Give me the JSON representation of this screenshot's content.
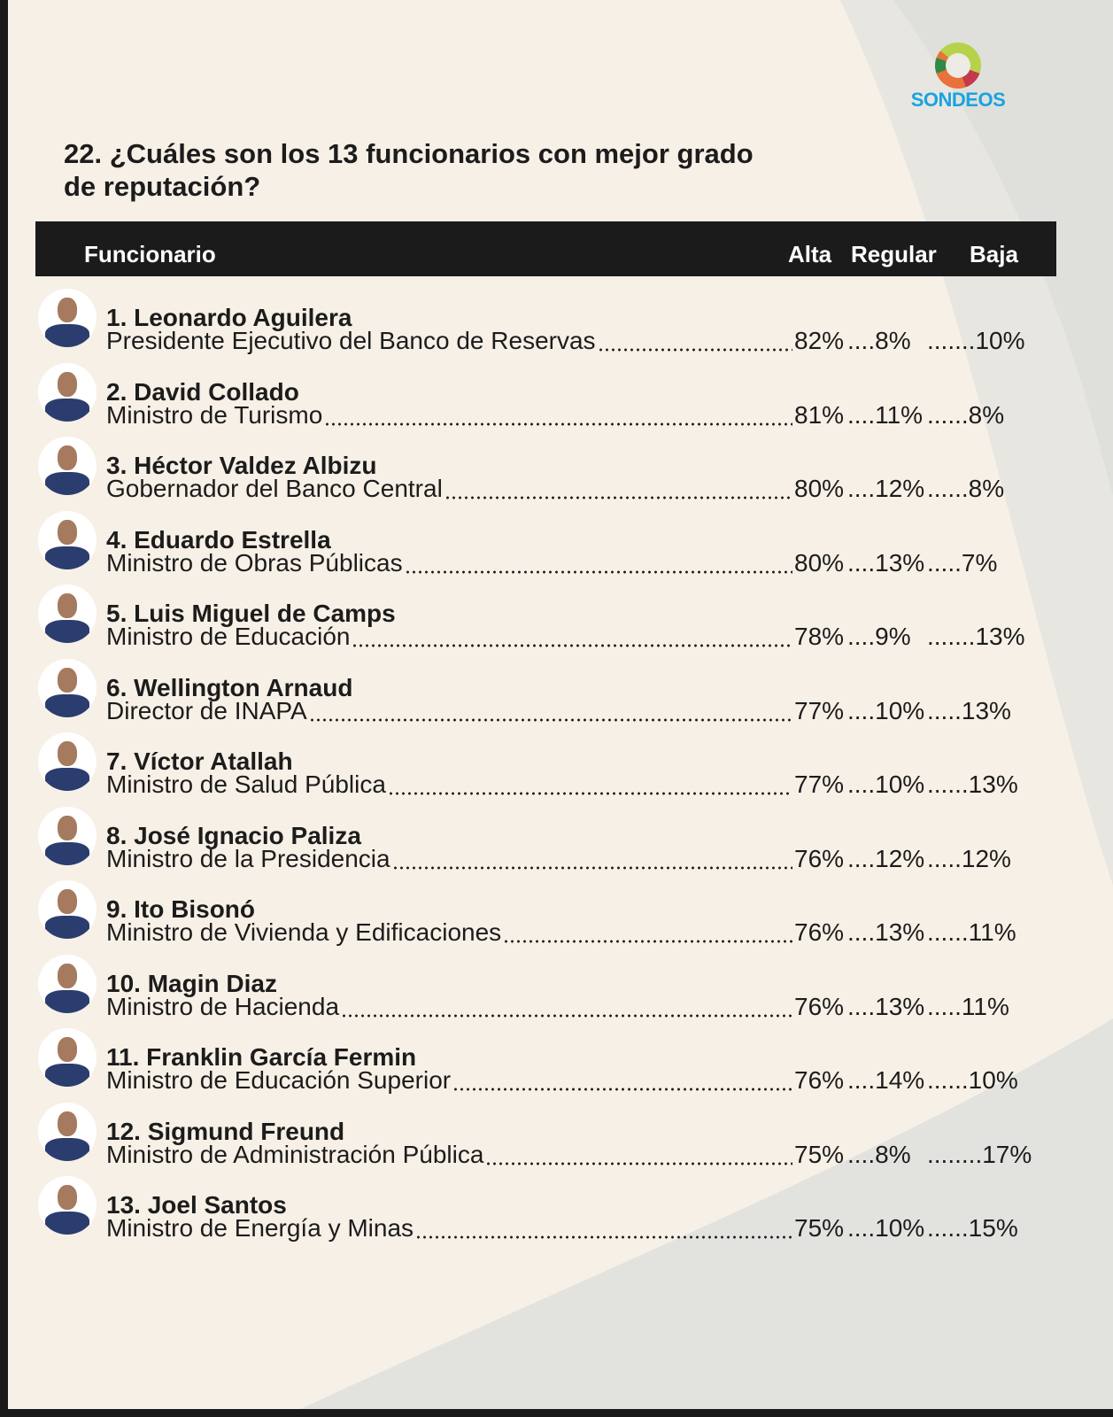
{
  "logo": {
    "text": "SONDEOS",
    "colors": [
      "#b6d24a",
      "#c23a4b",
      "#e9713a",
      "#2f8a45",
      "#1aa3e0"
    ]
  },
  "title": "22.  ¿Cuáles son los 13 funcionarios con mejor grado de reputación?",
  "table": {
    "headers": {
      "name": "Funcionario",
      "alta": "Alta",
      "regular": "Regular",
      "baja": "Baja"
    },
    "rows": [
      {
        "name": "1. Leonardo Aguilera",
        "role": "Presidente Ejecutivo del Banco de Reservas",
        "alta": "82%",
        "regular": "....8%",
        "baja": ".......10%"
      },
      {
        "name": "2. David Collado",
        "role": "Ministro de Turismo",
        "alta": "81%",
        "regular": "....11%",
        "baja": "......8%"
      },
      {
        "name": "3. Héctor Valdez Albizu",
        "role": "Gobernador del Banco Central",
        "alta": "80%",
        "regular": "....12%",
        "baja": "......8%"
      },
      {
        "name": "4. Eduardo Estrella",
        "role": "Ministro de Obras Públicas",
        "alta": "80%",
        "regular": "....13%",
        "baja": ".....7%"
      },
      {
        "name": "5. Luis Miguel de Camps",
        "role": "Ministro de Educación",
        "alta": "78%",
        "regular": "....9%",
        "baja": ".......13%"
      },
      {
        "name": "6. Wellington Arnaud",
        "role": "Director de INAPA",
        "alta": "77%",
        "regular": "....10%",
        "baja": ".....13%"
      },
      {
        "name": "7. Víctor Atallah",
        "role": "Ministro de Salud Pública",
        "alta": "77%",
        "regular": "....10%",
        "baja": "......13%"
      },
      {
        "name": "8. José Ignacio Paliza",
        "role": "Ministro de la Presidencia",
        "alta": "76%",
        "regular": "....12%",
        "baja": ".....12%"
      },
      {
        "name": "9. Ito Bisonó",
        "role": "Ministro de Vivienda y Edificaciones",
        "alta": "76%",
        "regular": "....13%",
        "baja": "......11%"
      },
      {
        "name": "10. Magin Diaz",
        "role": "Ministro de Hacienda",
        "alta": "76%",
        "regular": "....13%",
        "baja": ".....11%"
      },
      {
        "name": "11. Franklin García Fermin",
        "role": "Ministro de Educación Superior",
        "alta": "76%",
        "regular": "....14%",
        "baja": "......10%"
      },
      {
        "name": "12. Sigmund Freund",
        "role": "Ministro de Administración Pública",
        "alta": "75%",
        "regular": "....8%",
        "baja": "........17%"
      },
      {
        "name": "13. Joel Santos",
        "role": "Ministro de Energía y Minas",
        "alta": "75%",
        "regular": "....10%",
        "baja": "......15%"
      }
    ]
  }
}
